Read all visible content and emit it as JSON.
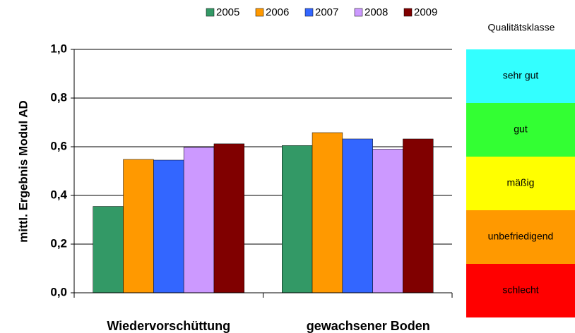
{
  "chart_data": {
    "type": "bar",
    "y_label": "mittl. Ergebnis Modul AD",
    "categories": [
      "Wiedervorschüttung",
      "gewachsener Boden"
    ],
    "series": [
      {
        "name": "2005",
        "color": "#339966",
        "values": [
          0.355,
          0.605
        ]
      },
      {
        "name": "2006",
        "color": "#ff9900",
        "values": [
          0.548,
          0.658
        ]
      },
      {
        "name": "2007",
        "color": "#3366ff",
        "values": [
          0.545,
          0.632
        ]
      },
      {
        "name": "2008",
        "color": "#cc99ff",
        "values": [
          0.598,
          0.59
        ]
      },
      {
        "name": "2009",
        "color": "#800000",
        "values": [
          0.612,
          0.632
        ]
      }
    ],
    "ylim": [
      0,
      1
    ],
    "yticks": [
      {
        "value": 0,
        "label": "0,0"
      },
      {
        "value": 0.2,
        "label": "0,2"
      },
      {
        "value": 0.4,
        "label": "0,4"
      },
      {
        "value": 0.6,
        "label": "0,6"
      },
      {
        "value": 0.8,
        "label": "0,8"
      },
      {
        "value": 1,
        "label": "1,0"
      }
    ],
    "grid": true,
    "legend": "top"
  },
  "quality_scale": {
    "title": "Qualitätsklasse",
    "classes": [
      {
        "label": "sehr gut",
        "color": "#33ffff"
      },
      {
        "label": "gut",
        "color": "#33ff33"
      },
      {
        "label": "mäßig",
        "color": "#ffff00"
      },
      {
        "label": "unbefriedigend",
        "color": "#ff9900"
      },
      {
        "label": "schlecht",
        "color": "#ff0000"
      }
    ]
  }
}
